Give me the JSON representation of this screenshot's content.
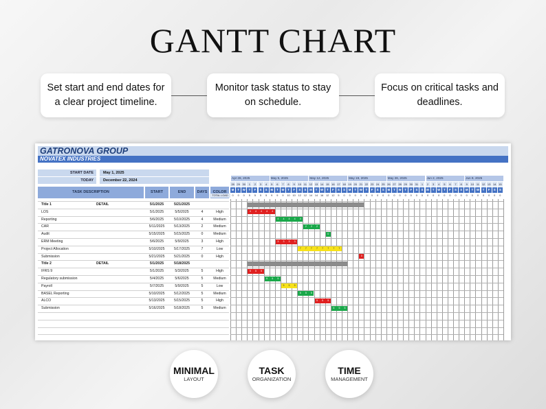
{
  "hero": {
    "title": "GANTT CHART"
  },
  "features": [
    {
      "text": "Set start and end dates for a clear project timeline."
    },
    {
      "text": "Monitor task status to stay on schedule."
    },
    {
      "text": "Focus on critical tasks and deadlines."
    }
  ],
  "sheet": {
    "company": "GATRONOVA GROUP",
    "division": "NOVATEX INDUSTRIES",
    "start_date_label": "START DATE",
    "start_date_value": "May 1, 2025",
    "today_label": "TODAY",
    "today_value": "December 22, 2024",
    "columns": {
      "task": "TASK DESCRIPTION",
      "start": "START",
      "end": "END",
      "days": "DAYS",
      "color": "COLOR"
    },
    "total_load_label": "TOTAL LOAD",
    "weeks": [
      "Apr 28, 2025",
      "May 5, 2025",
      "May 12, 2025",
      "May 19, 2025",
      "May 26, 2025",
      "Jun 2, 2025",
      "Jun 9, 2025"
    ],
    "day_numbers": [
      "28",
      "29",
      "30",
      "1",
      "2",
      "3",
      "4",
      "5",
      "6",
      "7",
      "8",
      "9",
      "10",
      "11",
      "12",
      "13",
      "14",
      "15",
      "16",
      "17",
      "18",
      "19",
      "20",
      "21",
      "22",
      "23",
      "24",
      "25",
      "26",
      "27",
      "28",
      "29",
      "30",
      "31",
      "1",
      "2",
      "3",
      "4",
      "5",
      "6",
      "7",
      "8",
      "9",
      "10",
      "11",
      "12",
      "13",
      "14",
      "15"
    ],
    "day_letters": [
      "M",
      "T",
      "W",
      "T",
      "F",
      "S",
      "S",
      "M",
      "T",
      "W",
      "T",
      "F",
      "S",
      "S",
      "M",
      "T",
      "W",
      "T",
      "F",
      "S",
      "S",
      "M",
      "T",
      "W",
      "T",
      "F",
      "S",
      "S",
      "M",
      "T",
      "W",
      "T",
      "F",
      "S",
      "S",
      "M",
      "T",
      "W",
      "T",
      "F",
      "S",
      "S",
      "M",
      "T",
      "W",
      "T",
      "F",
      "S",
      "S"
    ],
    "total_load": [
      "0",
      "0",
      "0",
      "5",
      "5",
      "5",
      "5",
      "9",
      "9",
      "9",
      "10",
      "10",
      "12",
      "12",
      "14",
      "14",
      "16",
      "12",
      "12",
      "5",
      "0",
      "0",
      "0",
      "0",
      "0",
      "0",
      "0",
      "0",
      "0",
      "0",
      "0",
      "0",
      "0",
      "0",
      "0",
      "0",
      "0",
      "0",
      "0",
      "0",
      "0",
      "0",
      "0",
      "0",
      "0",
      "0",
      "0",
      "0",
      "0"
    ],
    "rows": [
      {
        "type": "title",
        "task": "Title 1",
        "detail": "DETAIL",
        "start": "5/1/2025",
        "end": "5/21/2025",
        "days": "",
        "priority": "",
        "bar_start": 3,
        "bar_len": 21,
        "color": "#8c8c8c",
        "label": ""
      },
      {
        "type": "task",
        "task": "LOS",
        "detail": "",
        "start": "5/1/2025",
        "end": "5/5/2025",
        "days": "4",
        "priority": "High",
        "bar_start": 3,
        "bar_len": 5,
        "color": "#e02020",
        "label": "4"
      },
      {
        "type": "task",
        "task": "Reporting",
        "detail": "",
        "start": "5/6/2025",
        "end": "5/10/2025",
        "days": "4",
        "priority": "Medium",
        "bar_start": 8,
        "bar_len": 5,
        "color": "#1aa84a",
        "label": "4"
      },
      {
        "type": "task",
        "task": "CAR",
        "detail": "",
        "start": "5/11/2025",
        "end": "5/13/2025",
        "days": "2",
        "priority": "Medium",
        "bar_start": 13,
        "bar_len": 3,
        "color": "#1aa84a",
        "label": "2"
      },
      {
        "type": "task",
        "task": "Audit",
        "detail": "",
        "start": "5/15/2025",
        "end": "5/15/2025",
        "days": "0",
        "priority": "Medium",
        "bar_start": 17,
        "bar_len": 1,
        "color": "#1aa84a",
        "label": "0"
      },
      {
        "type": "task",
        "task": "ERM Meeting",
        "detail": "",
        "start": "5/6/2025",
        "end": "5/9/2025",
        "days": "3",
        "priority": "High",
        "bar_start": 8,
        "bar_len": 4,
        "color": "#e02020",
        "label": "3"
      },
      {
        "type": "task",
        "task": "Project Allocation",
        "detail": "",
        "start": "5/10/2025",
        "end": "5/17/2025",
        "days": "7",
        "priority": "Low",
        "bar_start": 12,
        "bar_len": 8,
        "color": "#f7e21a",
        "label": "7"
      },
      {
        "type": "task",
        "task": "Submission",
        "detail": "",
        "start": "5/21/2025",
        "end": "5/21/2025",
        "days": "0",
        "priority": "High",
        "bar_start": 23,
        "bar_len": 1,
        "color": "#e02020",
        "label": "0"
      },
      {
        "type": "title",
        "task": "Title 2",
        "detail": "DETAIL",
        "start": "5/1/2025",
        "end": "5/18/2025",
        "days": "",
        "priority": "",
        "bar_start": 3,
        "bar_len": 18,
        "color": "#8c8c8c",
        "label": ""
      },
      {
        "type": "task",
        "task": "IFRS 9",
        "detail": "",
        "start": "5/1/2025",
        "end": "5/3/2025",
        "days": "5",
        "priority": "High",
        "bar_start": 3,
        "bar_len": 3,
        "color": "#e02020",
        "label": "5"
      },
      {
        "type": "task",
        "task": "Regulatory submission",
        "detail": "",
        "start": "5/4/2025",
        "end": "5/6/2025",
        "days": "5",
        "priority": "Medium",
        "bar_start": 6,
        "bar_len": 3,
        "color": "#1aa84a",
        "label": "5"
      },
      {
        "type": "task",
        "task": "Payroll",
        "detail": "",
        "start": "5/7/2025",
        "end": "5/9/2025",
        "days": "5",
        "priority": "Low",
        "bar_start": 9,
        "bar_len": 3,
        "color": "#f7e21a",
        "label": "5"
      },
      {
        "type": "task",
        "task": "BASEL Reporting",
        "detail": "",
        "start": "5/10/2025",
        "end": "5/12/2025",
        "days": "5",
        "priority": "Medium",
        "bar_start": 12,
        "bar_len": 3,
        "color": "#1aa84a",
        "label": "5"
      },
      {
        "type": "task",
        "task": "ALCO",
        "detail": "",
        "start": "5/13/2025",
        "end": "5/15/2025",
        "days": "5",
        "priority": "High",
        "bar_start": 15,
        "bar_len": 3,
        "color": "#e02020",
        "label": "5"
      },
      {
        "type": "task",
        "task": "Submission",
        "detail": "",
        "start": "5/16/2025",
        "end": "5/18/2025",
        "days": "5",
        "priority": "Medium",
        "bar_start": 18,
        "bar_len": 3,
        "color": "#1aa84a",
        "label": "5"
      }
    ]
  },
  "badges": [
    {
      "big": "MINIMAL",
      "small": "LAYOUT"
    },
    {
      "big": "TASK",
      "small": "ORGANIZATION"
    },
    {
      "big": "TIME",
      "small": "MANAGEMENT"
    }
  ]
}
